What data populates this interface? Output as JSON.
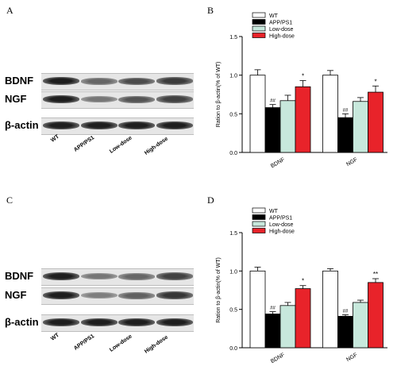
{
  "panels": {
    "A": "A",
    "B": "B",
    "C": "C",
    "D": "D"
  },
  "blot_top": {
    "rows": [
      {
        "label": "BDNF",
        "intensity": [
          1.0,
          0.55,
          0.72,
          0.82
        ]
      },
      {
        "label": "NGF",
        "intensity": [
          1.0,
          0.45,
          0.66,
          0.78
        ]
      },
      {
        "label": "β-actin",
        "intensity": [
          1.0,
          1.0,
          1.0,
          1.0
        ]
      }
    ],
    "lanes": [
      "WT",
      "APP/PS1",
      "Low-dose",
      "High-dose"
    ]
  },
  "blot_bottom": {
    "rows": [
      {
        "label": "BDNF",
        "intensity": [
          1.0,
          0.45,
          0.55,
          0.78
        ]
      },
      {
        "label": "NGF",
        "intensity": [
          1.0,
          0.4,
          0.58,
          0.85
        ]
      },
      {
        "label": "β-actin",
        "intensity": [
          1.0,
          1.0,
          1.0,
          1.0
        ]
      }
    ],
    "lanes": [
      "WT",
      "APP/PS1",
      "Low-dose",
      "High-dose"
    ]
  },
  "chart_data": [
    {
      "type": "bar",
      "panel": "B",
      "categories": [
        "BDNF",
        "NGF"
      ],
      "series": [
        {
          "name": "WT",
          "color": "#ffffff",
          "values": [
            1.0,
            1.0
          ],
          "errors": [
            0.07,
            0.06
          ],
          "marks": [
            "",
            ""
          ]
        },
        {
          "name": "APP/PS1",
          "color": "#000000",
          "values": [
            0.58,
            0.45
          ],
          "errors": [
            0.04,
            0.05
          ],
          "marks": [
            "##",
            "##"
          ]
        },
        {
          "name": "Low-dose",
          "color": "#c7e8dc",
          "values": [
            0.67,
            0.66
          ],
          "errors": [
            0.07,
            0.05
          ],
          "marks": [
            "",
            ""
          ]
        },
        {
          "name": "High-dose",
          "color": "#e8232a",
          "values": [
            0.85,
            0.78
          ],
          "errors": [
            0.08,
            0.08
          ],
          "marks": [
            "*",
            "*"
          ]
        }
      ],
      "ylabel": "Ration to β-actin(% of WT)",
      "ylim": [
        0,
        1.5
      ],
      "yticks": [
        "0.0",
        "0.5",
        "1.0",
        "1.5"
      ],
      "legend": "top-center"
    },
    {
      "type": "bar",
      "panel": "D",
      "categories": [
        "BDNF",
        "NGF"
      ],
      "series": [
        {
          "name": "WT",
          "color": "#ffffff",
          "values": [
            1.0,
            1.0
          ],
          "errors": [
            0.05,
            0.03
          ],
          "marks": [
            "",
            ""
          ]
        },
        {
          "name": "APP/PS1",
          "color": "#000000",
          "values": [
            0.44,
            0.41
          ],
          "errors": [
            0.03,
            0.02
          ],
          "marks": [
            "##",
            "##"
          ]
        },
        {
          "name": "Low-dose",
          "color": "#c7e8dc",
          "values": [
            0.55,
            0.59
          ],
          "errors": [
            0.04,
            0.03
          ],
          "marks": [
            "",
            ""
          ]
        },
        {
          "name": "High-dose",
          "color": "#e8232a",
          "values": [
            0.77,
            0.85
          ],
          "errors": [
            0.04,
            0.05
          ],
          "marks": [
            "*",
            "**"
          ]
        }
      ],
      "ylabel": "Ration to β-actin(% of WT)",
      "ylim": [
        0,
        1.5
      ],
      "yticks": [
        "0.0",
        "0.5",
        "1.0",
        "1.5"
      ],
      "legend": "top-center"
    }
  ]
}
